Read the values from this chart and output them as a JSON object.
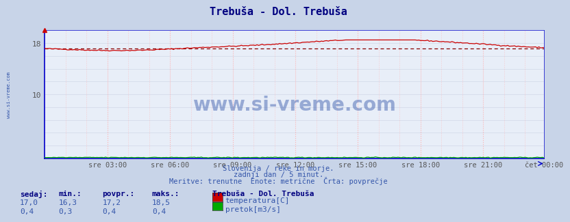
{
  "title": "Trebuša - Dol. Trebuša",
  "title_color": "#000080",
  "bg_color": "#c8d4e8",
  "plot_bg_color": "#e8eef8",
  "grid_color_h": "#d0d8e8",
  "grid_color_v": "#ffb0b0",
  "x_labels": [
    "sre 03:00",
    "sre 06:00",
    "sre 09:00",
    "sre 12:00",
    "sre 15:00",
    "sre 18:00",
    "sre 21:00",
    "čet 00:00"
  ],
  "n_points": 288,
  "temp_color": "#cc0000",
  "flow_color": "#00aa00",
  "avg_line_color": "#880000",
  "ymin": 0,
  "ymax": 20,
  "watermark": "www.si-vreme.com",
  "watermark_color": "#3355aa",
  "subtitle1": "Slovenija / reke in morje.",
  "subtitle2": "zadnji dan / 5 minut.",
  "subtitle3": "Meritve: trenutne  Enote: metrične  Črta: povprečje",
  "subtitle_color": "#3355aa",
  "label_header": "Trebuša - Dol. Trebuša",
  "col_headers": [
    "sedaj:",
    "min.:",
    "povpr.:",
    "maks.:"
  ],
  "row1_vals": [
    "17,0",
    "16,3",
    "17,2",
    "18,5"
  ],
  "row2_vals": [
    "0,4",
    "0,3",
    "0,4",
    "0,4"
  ],
  "legend_labels": [
    "temperatura[C]",
    "pretok[m3/s]"
  ],
  "legend_colors": [
    "#cc0000",
    "#00aa00"
  ],
  "sidebar_text": "www.si-vreme.com",
  "sidebar_color": "#3355aa",
  "axis_color": "#0000cc",
  "tick_color": "#555555",
  "temp_avg": 17.2
}
